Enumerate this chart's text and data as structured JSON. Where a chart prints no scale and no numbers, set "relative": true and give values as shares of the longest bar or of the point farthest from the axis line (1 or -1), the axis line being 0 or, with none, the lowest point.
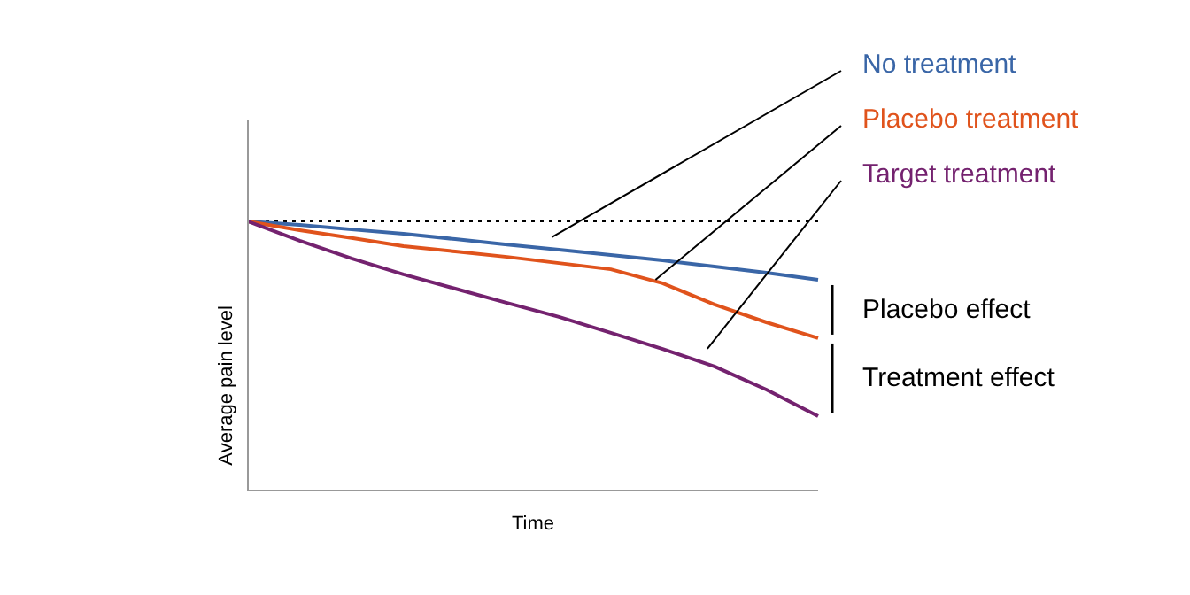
{
  "chart_data": {
    "type": "line",
    "relative": true,
    "xlabel": "Time",
    "ylabel": "Average pain level",
    "categories": [
      null,
      null,
      null,
      null,
      null,
      null,
      null,
      null,
      null,
      null,
      null,
      null
    ],
    "series": [
      {
        "name": "No treatment",
        "color": "#3a66a7",
        "values": [
          1,
          0.987,
          0.97,
          0.954,
          0.934,
          0.914,
          0.895,
          0.875,
          0.855,
          0.832,
          0.809,
          0.783
        ]
      },
      {
        "name": "Placebo treatment",
        "color": "#e0531c",
        "values": [
          1,
          0.967,
          0.938,
          0.908,
          0.888,
          0.868,
          0.845,
          0.822,
          0.77,
          0.691,
          0.625,
          0.566
        ]
      },
      {
        "name": "Target treatment",
        "color": "#74226f",
        "values": [
          1,
          0.928,
          0.862,
          0.803,
          0.75,
          0.697,
          0.645,
          0.586,
          0.526,
          0.461,
          0.375,
          0.276
        ]
      }
    ],
    "ref_lines": [
      {
        "axis": "y",
        "value": 1,
        "color": "#000000",
        "line_style": "dotted"
      }
    ],
    "annotations": [
      "Placebo effect",
      "Treatment effect"
    ],
    "grid": false,
    "legend": false,
    "marker": "none",
    "line_style": "solid"
  }
}
